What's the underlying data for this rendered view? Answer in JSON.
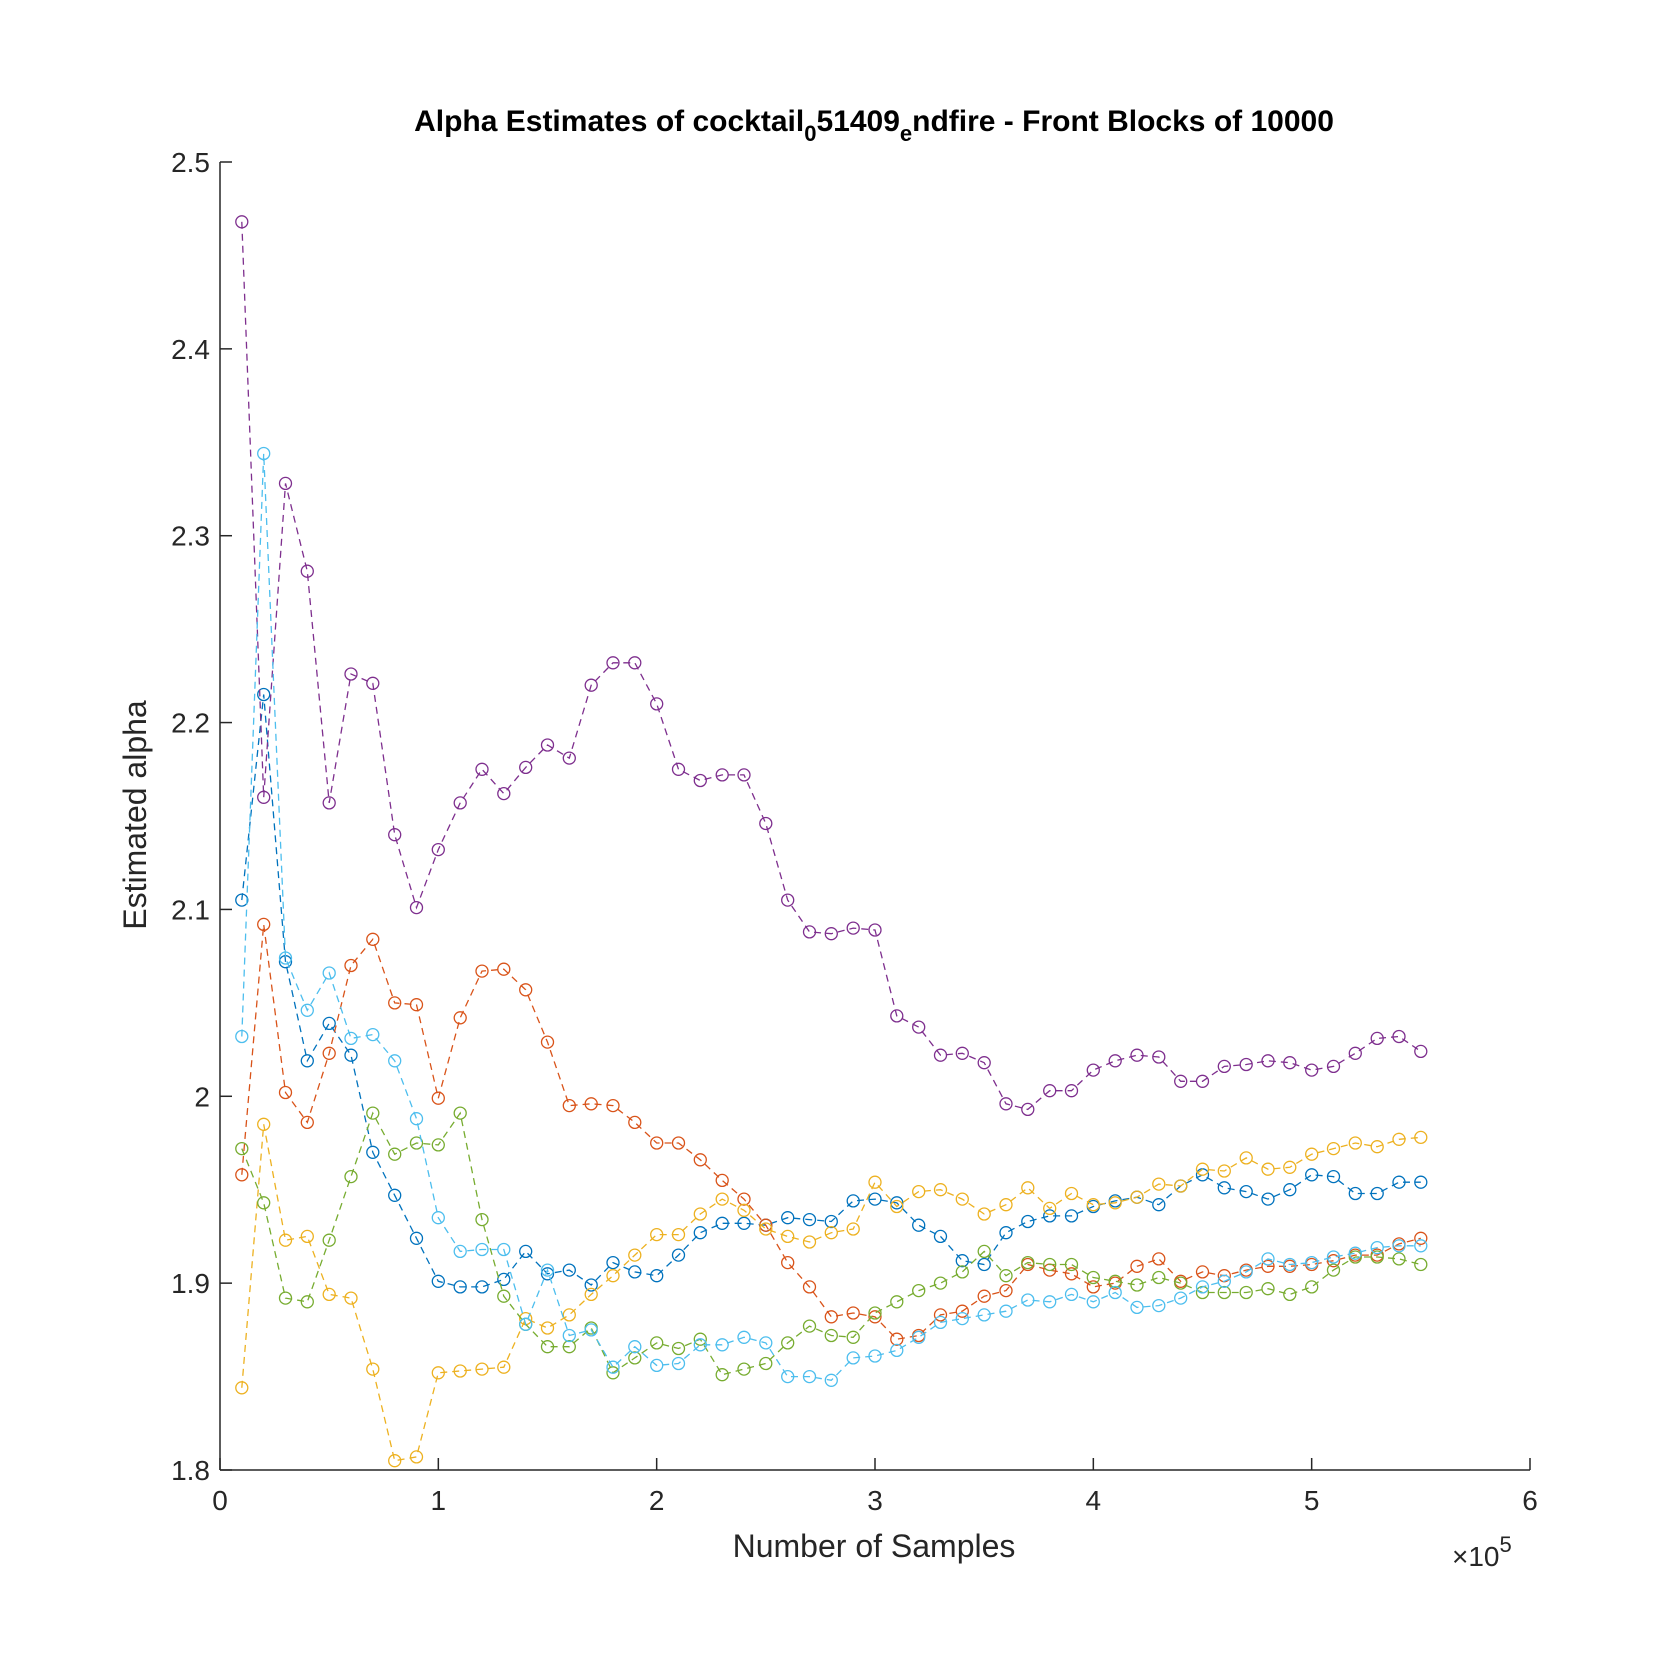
{
  "chart_data": {
    "type": "line",
    "title": {
      "parts": [
        {
          "text": "Alpha Estimates of cocktail",
          "sub": false
        },
        {
          "text": "0",
          "sub": true
        },
        {
          "text": "51409",
          "sub": false
        },
        {
          "text": "e",
          "sub": true
        },
        {
          "text": "ndfire - Front Blocks of 10000",
          "sub": false
        }
      ]
    },
    "xlabel": "Number of Samples",
    "ylabel": "Estimated alpha",
    "xlim": [
      0,
      6
    ],
    "ylim": [
      1.8,
      2.5
    ],
    "x_ticks": [
      "0",
      "1",
      "2",
      "3",
      "4",
      "5",
      "6"
    ],
    "y_ticks": [
      "1.8",
      "1.9",
      "2",
      "2.1",
      "2.2",
      "2.3",
      "2.4",
      "2.5"
    ],
    "x_tick_values": [
      0,
      1,
      2,
      3,
      4,
      5,
      6
    ],
    "y_tick_values": [
      1.8,
      1.9,
      2.0,
      2.1,
      2.2,
      2.3,
      2.4,
      2.5
    ],
    "x_exponent_label": {
      "base": "×10",
      "exponent": "5"
    },
    "grid": false,
    "line_style": "dashed",
    "marker": "circle",
    "x": [
      0.1,
      0.2,
      0.3,
      0.4,
      0.5,
      0.6,
      0.7,
      0.8,
      0.9,
      1.0,
      1.1,
      1.2,
      1.3,
      1.4,
      1.5,
      1.6,
      1.7,
      1.8,
      1.9,
      2.0,
      2.1,
      2.2,
      2.3,
      2.4,
      2.5,
      2.6,
      2.7,
      2.8,
      2.9,
      3.0,
      3.1,
      3.2,
      3.3,
      3.4,
      3.5,
      3.6,
      3.7,
      3.8,
      3.9,
      4.0,
      4.1,
      4.2,
      4.3,
      4.4,
      4.5,
      4.6,
      4.7,
      4.8,
      4.9,
      5.0,
      5.1,
      5.2,
      5.3,
      5.4,
      5.5
    ],
    "series": [
      {
        "color": "#0072BD",
        "values": [
          2.105,
          2.215,
          2.072,
          2.019,
          2.039,
          2.022,
          1.97,
          1.947,
          1.924,
          1.901,
          1.898,
          1.898,
          1.902,
          1.917,
          1.905,
          1.907,
          1.899,
          1.911,
          1.906,
          1.904,
          1.915,
          1.927,
          1.932,
          1.932,
          1.931,
          1.935,
          1.934,
          1.933,
          1.944,
          1.945,
          1.943,
          1.931,
          1.925,
          1.912,
          1.91,
          1.927,
          1.933,
          1.936,
          1.936,
          1.941,
          1.944,
          1.946,
          1.942,
          1.952,
          1.958,
          1.951,
          1.949,
          1.945,
          1.95,
          1.958,
          1.957,
          1.948,
          1.948,
          1.954,
          1.954
        ]
      },
      {
        "color": "#D95319",
        "values": [
          1.958,
          2.092,
          2.002,
          1.986,
          2.023,
          2.07,
          2.084,
          2.05,
          2.049,
          1.999,
          2.042,
          2.067,
          2.068,
          2.057,
          2.029,
          1.995,
          1.996,
          1.995,
          1.986,
          1.975,
          1.975,
          1.966,
          1.955,
          1.945,
          1.931,
          1.911,
          1.898,
          1.882,
          1.884,
          1.882,
          1.87,
          1.872,
          1.883,
          1.885,
          1.893,
          1.896,
          1.91,
          1.907,
          1.905,
          1.898,
          1.9,
          1.909,
          1.913,
          1.901,
          1.906,
          1.904,
          1.907,
          1.909,
          1.909,
          1.91,
          1.912,
          1.915,
          1.915,
          1.921,
          1.924
        ]
      },
      {
        "color": "#EDB120",
        "values": [
          1.844,
          1.985,
          1.923,
          1.925,
          1.894,
          1.892,
          1.854,
          1.805,
          1.807,
          1.852,
          1.853,
          1.854,
          1.855,
          1.881,
          1.876,
          1.883,
          1.894,
          1.904,
          1.915,
          1.926,
          1.926,
          1.937,
          1.945,
          1.939,
          1.929,
          1.925,
          1.922,
          1.927,
          1.929,
          1.954,
          1.941,
          1.949,
          1.95,
          1.945,
          1.937,
          1.942,
          1.951,
          1.94,
          1.948,
          1.942,
          1.943,
          1.946,
          1.953,
          1.952,
          1.961,
          1.96,
          1.967,
          1.961,
          1.962,
          1.969,
          1.972,
          1.975,
          1.973,
          1.977,
          1.978
        ]
      },
      {
        "color": "#7E2F8E",
        "values": [
          2.468,
          2.16,
          2.328,
          2.281,
          2.157,
          2.226,
          2.221,
          2.14,
          2.101,
          2.132,
          2.157,
          2.175,
          2.162,
          2.176,
          2.188,
          2.181,
          2.22,
          2.232,
          2.232,
          2.21,
          2.175,
          2.169,
          2.172,
          2.172,
          2.146,
          2.105,
          2.088,
          2.087,
          2.09,
          2.089,
          2.043,
          2.037,
          2.022,
          2.023,
          2.018,
          1.996,
          1.993,
          2.003,
          2.003,
          2.014,
          2.019,
          2.022,
          2.021,
          2.008,
          2.008,
          2.016,
          2.017,
          2.019,
          2.018,
          2.014,
          2.016,
          2.023,
          2.031,
          2.032,
          2.024
        ]
      },
      {
        "color": "#77AC30",
        "values": [
          1.972,
          1.943,
          1.892,
          1.89,
          1.923,
          1.957,
          1.991,
          1.969,
          1.975,
          1.974,
          1.991,
          1.934,
          1.893,
          1.878,
          1.866,
          1.866,
          1.876,
          1.852,
          1.86,
          1.868,
          1.865,
          1.87,
          1.851,
          1.854,
          1.857,
          1.868,
          1.877,
          1.872,
          1.871,
          1.884,
          1.89,
          1.896,
          1.9,
          1.906,
          1.917,
          1.904,
          1.911,
          1.91,
          1.91,
          1.903,
          1.901,
          1.899,
          1.903,
          1.9,
          1.895,
          1.895,
          1.895,
          1.897,
          1.894,
          1.898,
          1.907,
          1.914,
          1.914,
          1.913,
          1.91
        ]
      },
      {
        "color": "#4DBEEE",
        "values": [
          2.032,
          2.344,
          2.074,
          2.046,
          2.066,
          2.031,
          2.033,
          2.019,
          1.988,
          1.935,
          1.917,
          1.918,
          1.918,
          1.878,
          1.907,
          1.872,
          1.875,
          1.855,
          1.866,
          1.856,
          1.857,
          1.867,
          1.867,
          1.871,
          1.868,
          1.85,
          1.85,
          1.848,
          1.86,
          1.861,
          1.864,
          1.871,
          1.879,
          1.881,
          1.883,
          1.885,
          1.891,
          1.89,
          1.894,
          1.89,
          1.895,
          1.887,
          1.888,
          1.892,
          1.898,
          1.901,
          1.906,
          1.913,
          1.91,
          1.911,
          1.914,
          1.916,
          1.919,
          1.92,
          1.92
        ]
      }
    ]
  }
}
